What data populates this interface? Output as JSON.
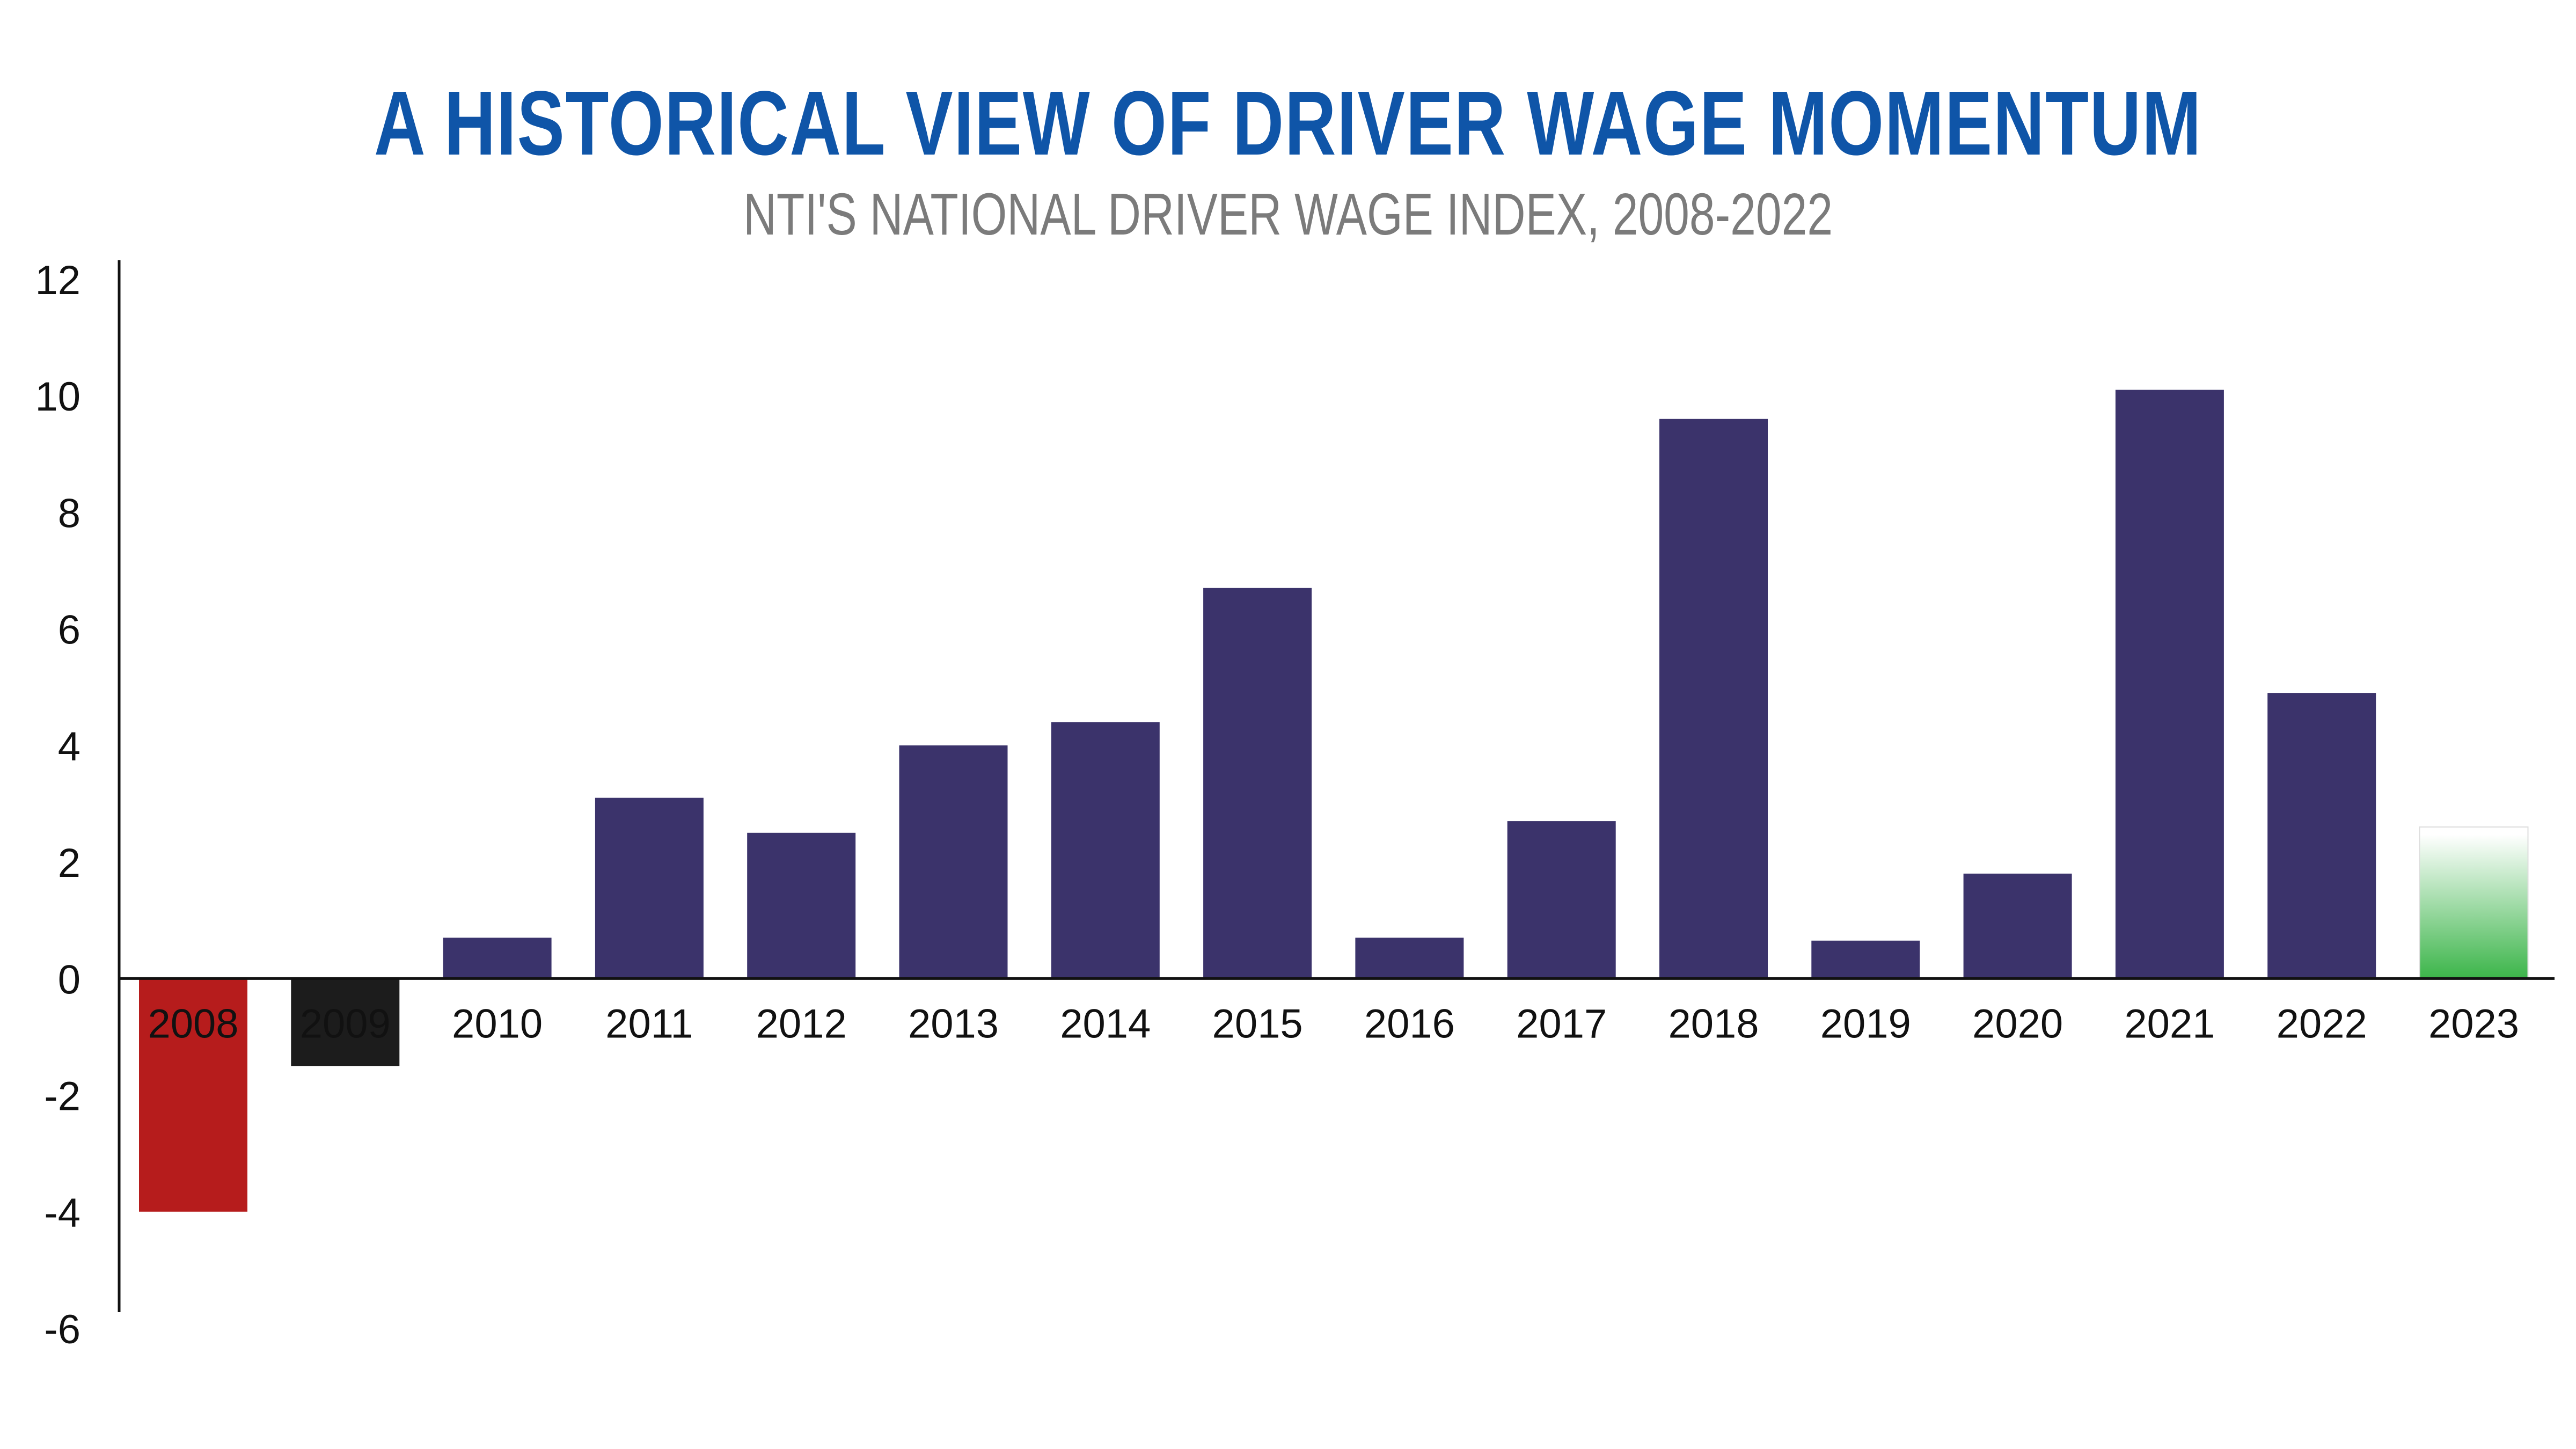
{
  "chart_data": {
    "type": "bar",
    "title": "A HISTORICAL VIEW OF DRIVER WAGE MOMENTUM",
    "subtitle": "NTI'S NATIONAL DRIVER WAGE INDEX, 2008-2022",
    "xlabel": "",
    "ylabel": "",
    "ylim": [
      -6,
      12
    ],
    "yticks": [
      "12",
      "10",
      "8",
      "6",
      "4",
      "2",
      "0",
      "-2",
      "-4",
      "-6"
    ],
    "grid": false,
    "categories": [
      "2008",
      "2009",
      "2010",
      "2011",
      "2012",
      "2013",
      "2014",
      "2015",
      "2016",
      "2017",
      "2018",
      "2019",
      "2020",
      "2021",
      "2022",
      "2023"
    ],
    "values": [
      -4.0,
      -1.5,
      0.7,
      3.1,
      2.5,
      4.0,
      4.4,
      6.7,
      0.7,
      2.7,
      9.6,
      0.65,
      1.8,
      10.1,
      4.9,
      2.6
    ],
    "colors": {
      "default": "#3b336b",
      "2008": "#b61c1c",
      "2009": "#1c1c1c",
      "2023_top": "#ffffff",
      "2023_bottom": "#3cb54a",
      "title": "#0f55a8",
      "subtitle": "#7b7b7b"
    }
  }
}
